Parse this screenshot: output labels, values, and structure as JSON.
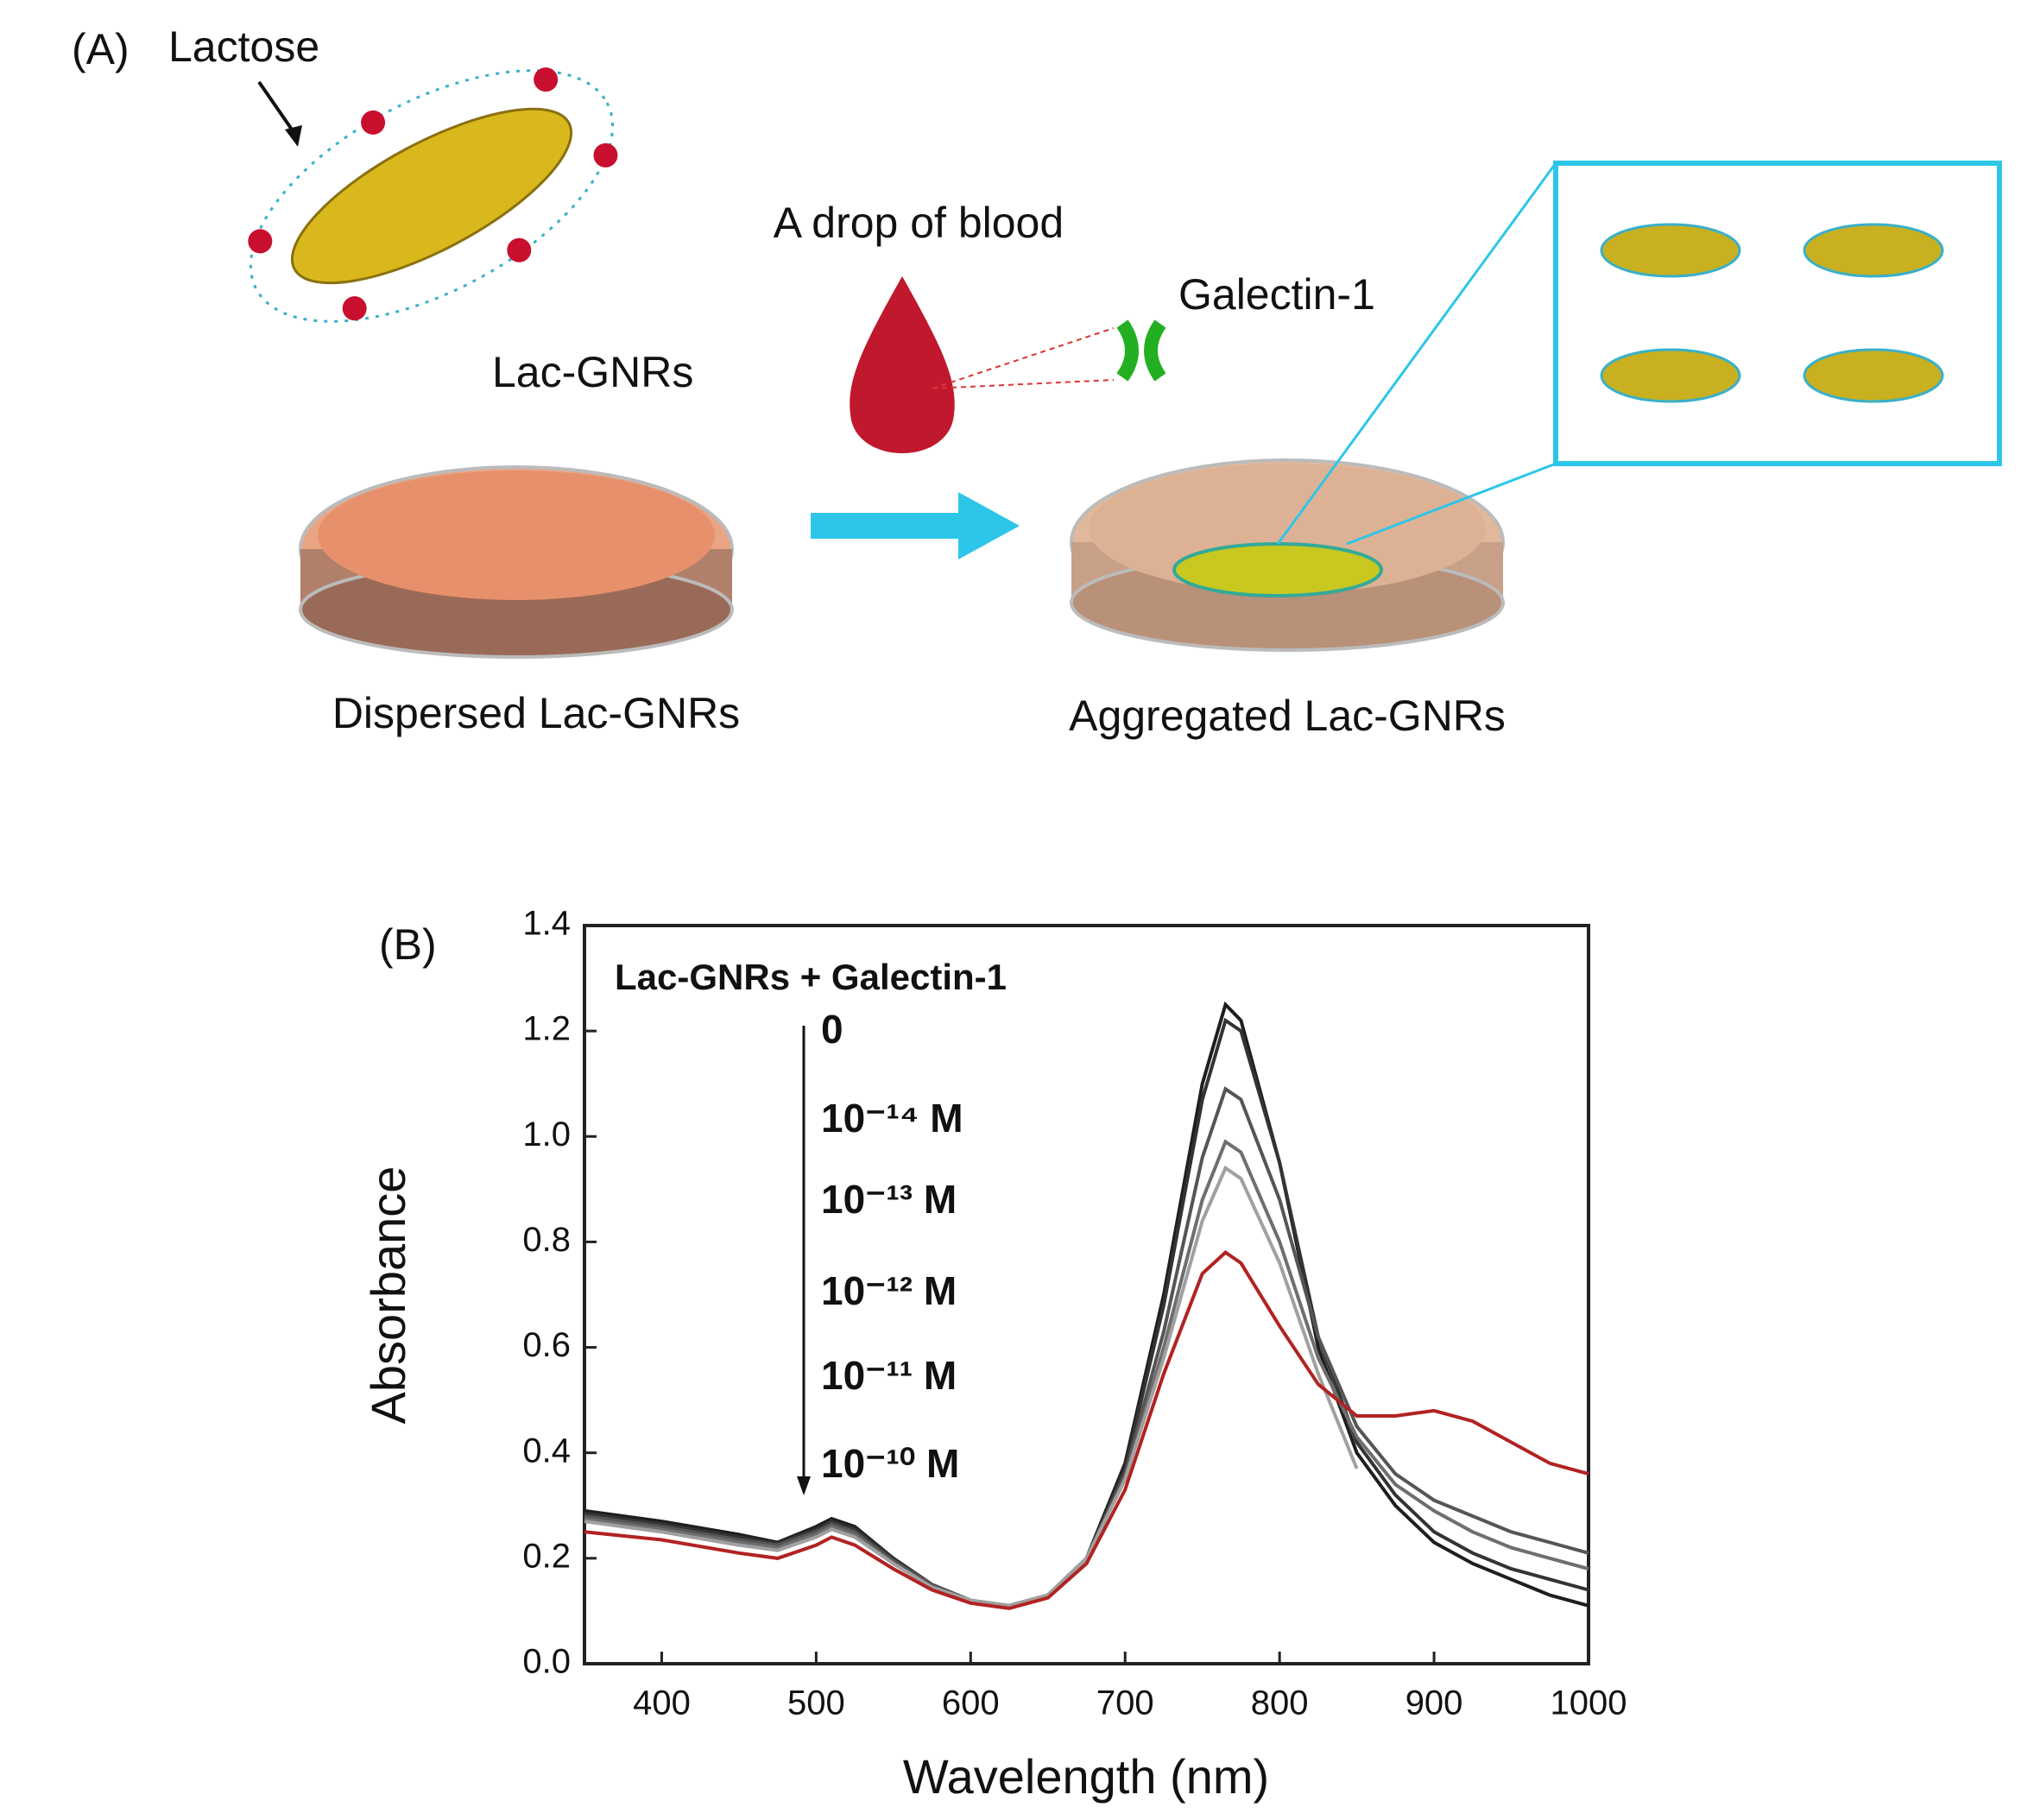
{
  "panel_a": {
    "label": "(A)",
    "lactose": "Lactose",
    "rod": "Lac-GNRs",
    "drop": "A drop of blood",
    "protein": "Galectin-1",
    "left_dish": "Dispersed Lac-GNRs",
    "right_dish": "Aggregated Lac-GNRs"
  },
  "chart_data": {
    "type": "line",
    "panel_label": "(B)",
    "legend_title": "Lac-GNRs + Galectin-1",
    "x_label": "Wavelength (nm)",
    "y_label": "Absorbance",
    "x": [
      350,
      400,
      450,
      475,
      500,
      510,
      525,
      550,
      575,
      600,
      625,
      650,
      675,
      700,
      725,
      750,
      765,
      775,
      800,
      825,
      850,
      875,
      900,
      925,
      950,
      975,
      1000
    ],
    "series": [
      {
        "name": "0",
        "color": "#1e1e1e",
        "values": [
          0.29,
          0.27,
          0.245,
          0.23,
          0.26,
          0.275,
          0.26,
          0.2,
          0.15,
          0.12,
          0.11,
          0.13,
          0.2,
          0.38,
          0.7,
          1.1,
          1.25,
          1.22,
          0.95,
          0.6,
          0.4,
          0.3,
          0.23,
          0.19,
          0.16,
          0.13,
          0.11
        ]
      },
      {
        "name": "10⁻¹⁴ M",
        "color": "#333333",
        "values": [
          0.285,
          0.265,
          0.24,
          0.228,
          0.255,
          0.27,
          0.255,
          0.2,
          0.15,
          0.12,
          0.11,
          0.13,
          0.2,
          0.37,
          0.68,
          1.07,
          1.22,
          1.2,
          0.95,
          0.62,
          0.42,
          0.32,
          0.25,
          0.21,
          0.18,
          0.16,
          0.14
        ]
      },
      {
        "name": "10⁻¹³ M",
        "color": "#555555",
        "values": [
          0.28,
          0.26,
          0.235,
          0.225,
          0.25,
          0.265,
          0.25,
          0.195,
          0.15,
          0.12,
          0.11,
          0.13,
          0.2,
          0.36,
          0.63,
          0.96,
          1.09,
          1.07,
          0.88,
          0.62,
          0.45,
          0.36,
          0.31,
          0.28,
          0.25,
          0.23,
          0.21
        ]
      },
      {
        "name": "10⁻¹² M",
        "color": "#6e6e6e",
        "values": [
          0.275,
          0.255,
          0.23,
          0.22,
          0.245,
          0.26,
          0.245,
          0.19,
          0.145,
          0.12,
          0.11,
          0.13,
          0.2,
          0.35,
          0.6,
          0.88,
          0.99,
          0.97,
          0.8,
          0.58,
          0.43,
          0.34,
          0.29,
          0.25,
          0.22,
          0.2,
          0.18
        ]
      },
      {
        "name": "10⁻¹¹ M",
        "color": "#a0a0a0",
        "values": [
          0.27,
          0.25,
          0.225,
          0.215,
          0.24,
          0.255,
          0.24,
          0.19,
          0.145,
          0.12,
          0.11,
          0.13,
          0.2,
          0.35,
          0.58,
          0.84,
          0.94,
          0.92,
          0.76,
          0.55,
          0.37,
          null,
          null,
          null,
          null,
          null,
          null
        ]
      },
      {
        "name": "10⁻¹⁰ M",
        "color": "#b22222",
        "values": [
          0.25,
          0.235,
          0.21,
          0.2,
          0.225,
          0.24,
          0.225,
          0.18,
          0.14,
          0.115,
          0.105,
          0.125,
          0.19,
          0.33,
          0.55,
          0.74,
          0.78,
          0.76,
          0.64,
          0.53,
          0.47,
          0.47,
          0.48,
          0.46,
          0.42,
          0.38,
          0.36
        ]
      }
    ],
    "xlim": [
      350,
      1000
    ],
    "xticks": [
      400,
      500,
      600,
      700,
      800,
      900,
      1000
    ],
    "ylim": [
      0,
      1.4
    ],
    "yticks": [
      {
        "value": 0,
        "label": "0.0"
      },
      0.2,
      0.4,
      0.6,
      0.8,
      {
        "value": 1,
        "label": "1.0"
      },
      1.2,
      1.4
    ]
  }
}
